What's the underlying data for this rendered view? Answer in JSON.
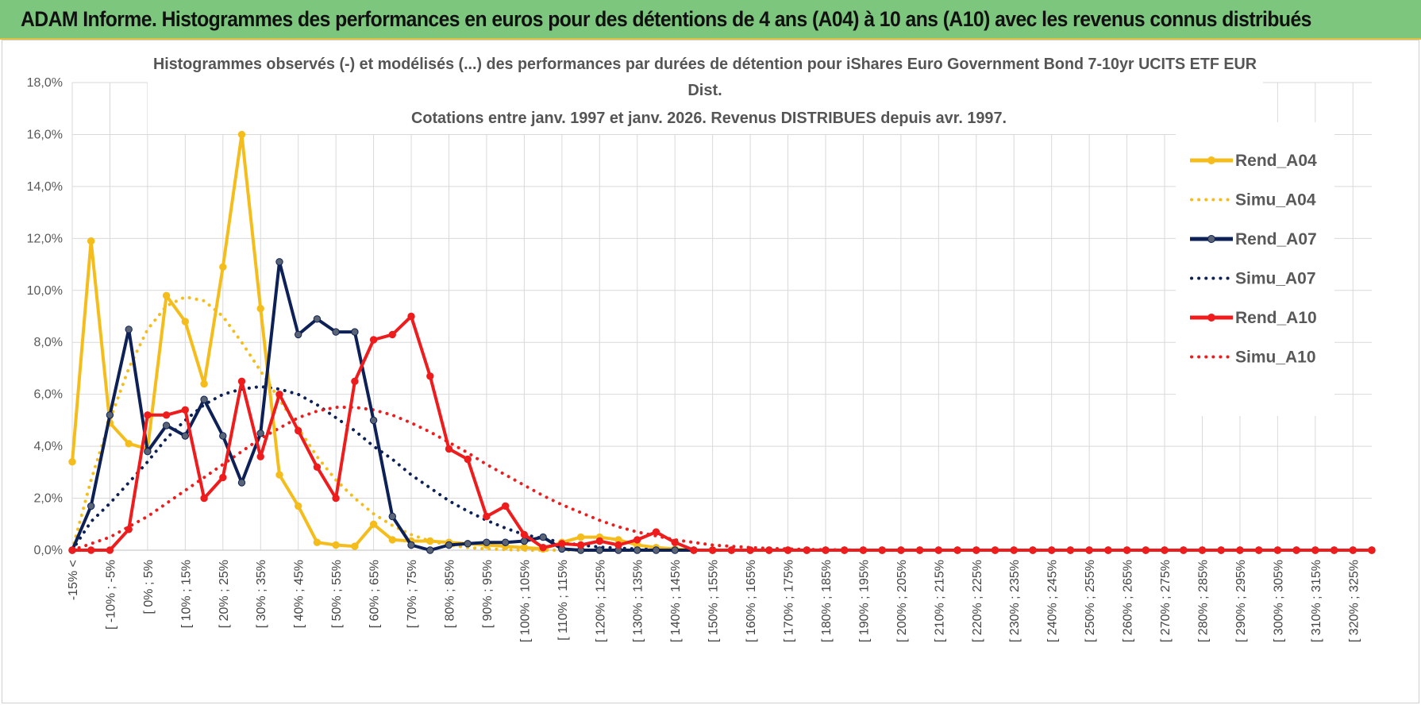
{
  "header": {
    "title": "ADAM Informe. Histogrammes des performances en euros pour des détentions de 4 ans (A04) à 10 ans (A10) avec les revenus connus distribués"
  },
  "colors": {
    "header_bg": "#7dc67e",
    "a04": "#f5bd1c",
    "a07": "#0d2157",
    "a10": "#ee1c1c",
    "marker_a07": "#5a6474"
  },
  "chart_data": {
    "type": "line",
    "title_lines": [
      "Histogrammes observés (-) et modélisés (...) des performances par durées de détention pour iShares Euro Government Bond 7-10yr UCITS ETF EUR",
      "Dist.",
      "Cotations entre janv. 1997 et janv. 2026. Revenus DISTRIBUES depuis avr. 1997."
    ],
    "ylim": [
      0,
      18
    ],
    "yticks": [
      "0,0%",
      "2,0%",
      "4,0%",
      "6,0%",
      "8,0%",
      "10,0%",
      "12,0%",
      "14,0%",
      "16,0%",
      "18,0%"
    ],
    "categories": [
      "-15% <",
      "[ -15% ; -10%",
      "[ -10% ; -5%",
      "[ -5% ; 0%",
      "[ 0% ; 5%",
      "[ 5% ; 10%",
      "[ 10% ; 15%",
      "[ 15% ; 20%",
      "[ 20% ; 25%",
      "[ 25% ; 30%",
      "[ 30% ; 35%",
      "[ 35% ; 40%",
      "[ 40% ; 45%",
      "[ 45% ; 50%",
      "[ 50% ; 55%",
      "[ 55% ; 60%",
      "[ 60% ; 65%",
      "[ 65% ; 70%",
      "[ 70% ; 75%",
      "[ 75% ; 80%",
      "[ 80% ; 85%",
      "[ 85% ; 90%",
      "[ 90% ; 95%",
      "[ 95% ; 100%",
      "[ 100% ; 105%",
      "[ 105% ; 110%",
      "[ 110% ; 115%",
      "[ 115% ; 120%",
      "[ 120% ; 125%",
      "[ 125% ; 130%",
      "[ 130% ; 135%",
      "[ 135% ; 140%",
      "[ 140% ; 145%",
      "[ 145% ; 150%",
      "[ 150% ; 155%",
      "[ 155% ; 160%",
      "[ 160% ; 165%",
      "[ 165% ; 170%",
      "[ 170% ; 175%",
      "[ 175% ; 180%",
      "[ 180% ; 185%",
      "[ 185% ; 190%",
      "[ 190% ; 195%",
      "[ 195% ; 200%",
      "[ 200% ; 205%",
      "[ 205% ; 210%",
      "[ 210% ; 215%",
      "[ 215% ; 220%",
      "[ 220% ; 225%",
      "[ 225% ; 230%",
      "[ 230% ; 235%",
      "[ 235% ; 240%",
      "[ 240% ; 245%",
      "[ 245% ; 250%",
      "[ 250% ; 255%",
      "[ 255% ; 260%",
      "[ 260% ; 265%",
      "[ 265% ; 270%",
      "[ 270% ; 275%",
      "[ 275% ; 280%",
      "[ 280% ; 285%",
      "[ 285% ; 290%",
      "[ 290% ; 295%",
      "[ 295% ; 300%",
      "[ 300% ; 305%",
      "[ 305% ; 310%",
      "[ 310% ; 315%",
      "[ 315% ; 320%",
      "[ 320% ; 325%",
      "[ 325% ; 330%"
    ],
    "visible_tick_labels": [
      "-15% <",
      "[ -10% ; -5%",
      "[ 0% ; 5%",
      "[ 10% ; 15%",
      "[ 20% ; 25%",
      "[ 30% ; 35%",
      "[ 40% ; 45%",
      "[ 50% ; 55%",
      "[ 60% ; 65%",
      "[ 70% ; 75%",
      "[ 80% ; 85%",
      "[ 90% ; 95%",
      "[ 100% ; 105%",
      "[ 110% ; 115%",
      "[ 120% ; 125%",
      "[ 130% ; 135%",
      "[ 140% ; 145%",
      "[ 150% ; 155%",
      "[ 160% ; 165%",
      "[ 170% ; 175%",
      "[ 180% ; 185%",
      "[ 190% ; 195%",
      "[ 200% ; 205%",
      "[ 210% ; 215%",
      "[ 220% ; 225%",
      "[ 230% ; 235%",
      "[ 240% ; 245%",
      "[ 250% ; 255%",
      "[ 260% ; 265%",
      "[ 270% ; 275%",
      "[ 280% ; 285%",
      "[ 290% ; 295%",
      "[ 300% ; 305%",
      "[ 310% ; 315%",
      "[ 320% ; 325%"
    ],
    "series": [
      {
        "name": "Rend_A04",
        "style": "solid",
        "color": "#f5bd1c",
        "values": [
          3.4,
          11.9,
          4.9,
          4.1,
          3.9,
          9.8,
          8.8,
          6.4,
          10.9,
          16.0,
          9.3,
          2.9,
          1.7,
          0.3,
          0.2,
          0.15,
          1.0,
          0.4,
          0.35,
          0.35,
          0.3,
          0.25,
          0.2,
          0.15,
          0.1,
          0.05,
          0.3,
          0.5,
          0.5,
          0.4,
          0.2,
          0.1,
          0.05,
          0,
          0,
          0,
          0,
          0,
          0,
          0,
          0,
          0,
          0,
          0,
          0,
          0,
          0,
          0,
          0,
          0,
          0,
          0,
          0,
          0,
          0,
          0,
          0,
          0,
          0,
          0,
          0,
          0,
          0,
          0,
          0,
          0,
          0,
          0,
          0,
          0
        ]
      },
      {
        "name": "Simu_A04",
        "style": "dotted",
        "color": "#f5bd1c",
        "values": [
          0.0,
          2.7,
          5.0,
          7.0,
          8.5,
          9.4,
          9.75,
          9.6,
          9.0,
          8.0,
          6.9,
          5.8,
          4.7,
          3.6,
          2.7,
          2.0,
          1.4,
          0.95,
          0.6,
          0.35,
          0.2,
          0.1,
          0.05,
          0.02,
          0,
          0,
          0,
          0,
          0,
          0,
          0,
          0,
          0,
          0,
          0,
          0,
          0,
          0,
          0,
          0,
          0,
          0,
          0,
          0,
          0,
          0,
          0,
          0,
          0,
          0,
          0,
          0,
          0,
          0,
          0,
          0,
          0,
          0,
          0,
          0,
          0,
          0,
          0,
          0,
          0,
          0,
          0,
          0,
          0,
          0
        ]
      },
      {
        "name": "Rend_A07",
        "style": "solid",
        "color": "#0d2157",
        "values": [
          0.0,
          1.7,
          5.2,
          8.5,
          3.8,
          4.8,
          4.4,
          5.8,
          4.4,
          2.6,
          4.5,
          11.1,
          8.3,
          8.9,
          8.4,
          8.4,
          5.0,
          1.3,
          0.2,
          0.0,
          0.2,
          0.25,
          0.3,
          0.3,
          0.35,
          0.5,
          0.05,
          0.0,
          0.0,
          0.0,
          0.0,
          0.0,
          0.0,
          0,
          0,
          0,
          0,
          0,
          0,
          0,
          0,
          0,
          0,
          0,
          0,
          0,
          0,
          0,
          0,
          0,
          0,
          0,
          0,
          0,
          0,
          0,
          0,
          0,
          0,
          0,
          0,
          0,
          0,
          0,
          0,
          0,
          0,
          0,
          0,
          0
        ]
      },
      {
        "name": "Simu_A07",
        "style": "dotted",
        "color": "#0d2157",
        "values": [
          0.0,
          1.1,
          1.8,
          2.6,
          3.4,
          4.3,
          5.0,
          5.6,
          6.0,
          6.2,
          6.3,
          6.2,
          6.0,
          5.6,
          5.1,
          4.6,
          4.0,
          3.5,
          2.9,
          2.4,
          1.9,
          1.5,
          1.15,
          0.85,
          0.6,
          0.45,
          0.3,
          0.2,
          0.12,
          0.08,
          0.05,
          0.03,
          0.02,
          0,
          0,
          0,
          0,
          0,
          0,
          0,
          0,
          0,
          0,
          0,
          0,
          0,
          0,
          0,
          0,
          0,
          0,
          0,
          0,
          0,
          0,
          0,
          0,
          0,
          0,
          0,
          0,
          0,
          0,
          0,
          0,
          0,
          0,
          0,
          0,
          0
        ]
      },
      {
        "name": "Rend_A10",
        "style": "solid",
        "color": "#ee1c1c",
        "values": [
          0.0,
          0.0,
          0.0,
          0.8,
          5.2,
          5.2,
          5.4,
          2.0,
          2.8,
          6.5,
          3.6,
          6.0,
          4.6,
          3.2,
          2.0,
          6.5,
          8.1,
          8.3,
          9.0,
          6.7,
          3.9,
          3.5,
          1.3,
          1.7,
          0.6,
          0.1,
          0.25,
          0.2,
          0.35,
          0.2,
          0.4,
          0.7,
          0.3,
          0.0,
          0,
          0,
          0,
          0,
          0,
          0,
          0,
          0,
          0,
          0,
          0,
          0,
          0,
          0,
          0,
          0,
          0,
          0,
          0,
          0,
          0,
          0,
          0,
          0,
          0,
          0,
          0,
          0,
          0,
          0,
          0,
          0,
          0,
          0,
          0,
          0
        ]
      },
      {
        "name": "Simu_A10",
        "style": "dotted",
        "color": "#ee1c1c",
        "values": [
          0.0,
          0.25,
          0.5,
          0.9,
          1.3,
          1.8,
          2.3,
          2.8,
          3.3,
          3.8,
          4.3,
          4.7,
          5.1,
          5.35,
          5.5,
          5.5,
          5.4,
          5.2,
          4.9,
          4.55,
          4.15,
          3.75,
          3.3,
          2.9,
          2.5,
          2.1,
          1.75,
          1.45,
          1.15,
          0.9,
          0.7,
          0.55,
          0.4,
          0.3,
          0.2,
          0.15,
          0.1,
          0.07,
          0.05,
          0.03,
          0.02,
          0.01,
          0,
          0,
          0,
          0,
          0,
          0,
          0,
          0,
          0,
          0,
          0,
          0,
          0,
          0,
          0,
          0,
          0,
          0,
          0,
          0,
          0,
          0,
          0,
          0,
          0,
          0,
          0,
          0
        ]
      }
    ],
    "legend_position": "top-right",
    "grid": true
  }
}
